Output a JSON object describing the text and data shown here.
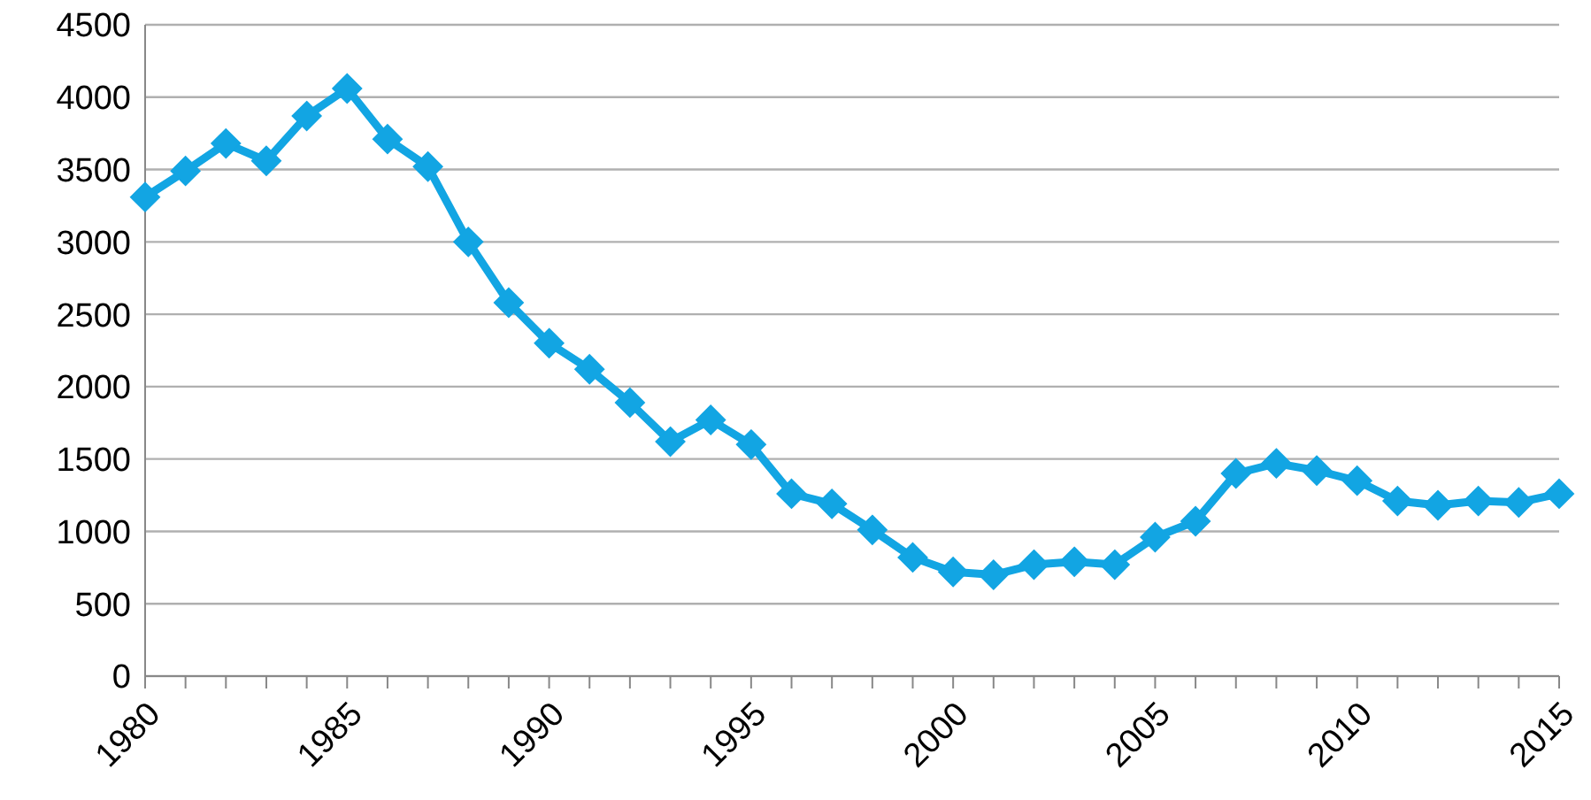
{
  "chart_data": {
    "type": "line",
    "categories": [
      "1980",
      null,
      null,
      null,
      null,
      "1985",
      null,
      null,
      null,
      null,
      "1990",
      null,
      null,
      null,
      null,
      "1995",
      null,
      null,
      null,
      null,
      "2000",
      null,
      null,
      null,
      null,
      "2005",
      null,
      null,
      null,
      null,
      "2010",
      null,
      null,
      null,
      null,
      "2015"
    ],
    "series": [
      {
        "color": "#12a5e3",
        "values": [
          3310,
          3490,
          3680,
          3560,
          3870,
          4060,
          3710,
          3520,
          3000,
          2580,
          2300,
          2120,
          1890,
          1620,
          1770,
          1600,
          1260,
          1190,
          1010,
          820,
          720,
          700,
          770,
          790,
          770,
          960,
          1070,
          1400,
          1470,
          1420,
          1350,
          1210,
          1180,
          1210,
          1200,
          1260
        ]
      }
    ],
    "ylim": [
      0,
      4500
    ],
    "yticks": [
      0,
      500,
      1000,
      1500,
      2000,
      2500,
      3000,
      3500,
      4000,
      4500
    ],
    "grid": "y",
    "marker": "diamond",
    "line_style": "solid"
  }
}
